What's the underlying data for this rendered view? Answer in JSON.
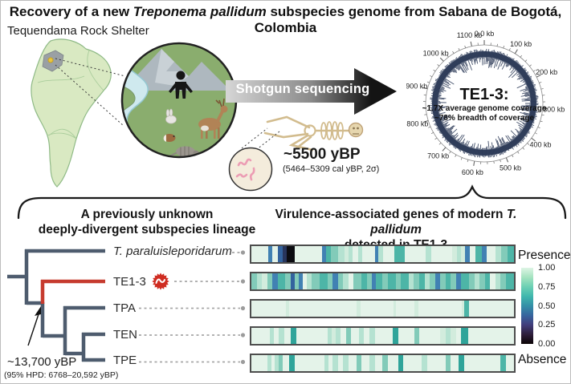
{
  "title": {
    "prefix": "Recovery of a new ",
    "species": "Treponema pallidum",
    "suffix": " subspecies genome from Sabana de Bogotá, Colombia"
  },
  "map": {
    "label": "Tequendama Rock Shelter",
    "land_color": "#d9e9c2",
    "region_color": "#9aa0a4",
    "marker_color": "#e9c63f"
  },
  "sequencing": {
    "arrow_label": "Shotgun sequencing",
    "arrow_colors": [
      "#d6d6d6",
      "#8a8a8a",
      "#141414"
    ],
    "age": "~5500 yBP",
    "age_detail": "(5464–5309 cal yBP, 2σ)"
  },
  "genome_plot": {
    "name": "TE1-3:",
    "coverage_line1": "~1.7X average genome coverage",
    "coverage_line2": "~78% breadth of coverage",
    "genome_size_kb": 1139,
    "tick_positions_kb": [
      0,
      100,
      200,
      300,
      400,
      500,
      600,
      700,
      800,
      900,
      1000,
      1100
    ],
    "tick_labels": [
      "0.0 kb",
      "100 kb",
      "200 kb",
      "300 kb",
      "400 kb",
      "500 kb",
      "600 kb",
      "700 kb",
      "800 kb",
      "900 kb",
      "1000 kb",
      "1100 kb"
    ],
    "coverage_color": "#2c3a57"
  },
  "tree_panel": {
    "heading_line1": "A previously unknown",
    "heading_line2": "deeply-divergent subspecies lineage",
    "taxa": [
      {
        "label": "T. paraluisleporidarum",
        "italic": true,
        "highlight": false
      },
      {
        "label": "TE1-3",
        "italic": false,
        "highlight": true
      },
      {
        "label": "TPA",
        "italic": false,
        "highlight": false
      },
      {
        "label": "TEN",
        "italic": false,
        "highlight": false
      },
      {
        "label": "TPE",
        "italic": false,
        "highlight": false
      }
    ],
    "node_age": "~13,700 yBP",
    "node_age_detail": "(95% HPD: 6768–20,592 yBP)",
    "branch_color": "#4e5c6e",
    "highlight_color": "#c63b2f",
    "badge_color": "#cf2c21"
  },
  "heatmap_panel": {
    "heading_prefix": "Virulence-associated genes of modern ",
    "heading_species": "T. pallidum",
    "heading_line2": "detected in TE1-3",
    "legend": {
      "top_label": "Presence",
      "bottom_label": "Absence",
      "ticks": [
        "1.00",
        "0.75",
        "0.50",
        "0.25",
        "0.00"
      ],
      "gradient": [
        "#def5e5",
        "#a5e3c0",
        "#6cd0b4",
        "#40b7ad",
        "#348fa7",
        "#37659e",
        "#413d7b",
        "#2e1e3b",
        "#0b0405"
      ]
    },
    "palette": {
      "P": "#e4f3e9",
      "F": "#d2ecdd",
      "L": "#b5e2d1",
      "M": "#82cbb9",
      "T": "#4db5a7",
      "TD": "#2fa49a",
      "B": "#4181b3",
      "DB": "#33639e",
      "N": "#28355c",
      "K": "#0b0b10"
    },
    "rows": [
      {
        "taxon": "T. paraluisleporidarum",
        "segments": [
          [
            6.5,
            "P"
          ],
          [
            1.6,
            "B"
          ],
          [
            1.9,
            "P"
          ],
          [
            2,
            "DB"
          ],
          [
            1.4,
            "N"
          ],
          [
            3,
            "K"
          ],
          [
            10.6,
            "P"
          ],
          [
            1.6,
            "B"
          ],
          [
            1.6,
            "T"
          ],
          [
            3,
            "M"
          ],
          [
            2.4,
            "L"
          ],
          [
            1.4,
            "F"
          ],
          [
            1.6,
            "L"
          ],
          [
            2,
            "P"
          ],
          [
            1.8,
            "L"
          ],
          [
            4.6,
            "P"
          ],
          [
            1.5,
            "B"
          ],
          [
            1.8,
            "L"
          ],
          [
            4.2,
            "P"
          ],
          [
            4,
            "T"
          ],
          [
            8,
            "P"
          ],
          [
            2,
            "L"
          ],
          [
            8,
            "P"
          ],
          [
            1.8,
            "F"
          ],
          [
            1.6,
            "L"
          ],
          [
            1.4,
            "F"
          ],
          [
            2,
            "B"
          ],
          [
            2,
            "P"
          ],
          [
            2.6,
            "T"
          ],
          [
            1.8,
            "B"
          ],
          [
            3.4,
            "P"
          ],
          [
            2,
            "L"
          ],
          [
            2.6,
            "M"
          ],
          [
            2.3,
            "T"
          ]
        ]
      },
      {
        "taxon": "TE1-3",
        "segments": [
          [
            2,
            "M"
          ],
          [
            2,
            "L"
          ],
          [
            2,
            "F"
          ],
          [
            2,
            "M"
          ],
          [
            2,
            "B"
          ],
          [
            3,
            "T"
          ],
          [
            2,
            "M"
          ],
          [
            1.5,
            "DB"
          ],
          [
            1.5,
            "M"
          ],
          [
            1.5,
            "B"
          ],
          [
            1.5,
            "P"
          ],
          [
            2,
            "L"
          ],
          [
            3,
            "M"
          ],
          [
            3,
            "T"
          ],
          [
            2,
            "M"
          ],
          [
            2,
            "B"
          ],
          [
            2,
            "M"
          ],
          [
            2,
            "L"
          ],
          [
            2,
            "P"
          ],
          [
            3,
            "M"
          ],
          [
            2,
            "T"
          ],
          [
            2,
            "M"
          ],
          [
            1.5,
            "B"
          ],
          [
            2.5,
            "T"
          ],
          [
            2,
            "M"
          ],
          [
            3,
            "T"
          ],
          [
            2,
            "M"
          ],
          [
            3,
            "T"
          ],
          [
            2,
            "L"
          ],
          [
            2,
            "M"
          ],
          [
            2,
            "T"
          ],
          [
            2,
            "L"
          ],
          [
            2,
            "M"
          ],
          [
            2,
            "B"
          ],
          [
            2,
            "M"
          ],
          [
            2,
            "T"
          ],
          [
            2,
            "M"
          ],
          [
            2,
            "B"
          ],
          [
            3,
            "T"
          ],
          [
            2,
            "M"
          ],
          [
            2,
            "L"
          ],
          [
            2,
            "M"
          ],
          [
            2,
            "T"
          ],
          [
            2,
            "P"
          ],
          [
            2,
            "L"
          ],
          [
            2,
            "M"
          ],
          [
            3,
            "T"
          ]
        ]
      },
      {
        "taxon": "TPA",
        "segments": [
          [
            13,
            "P"
          ],
          [
            1.5,
            "F"
          ],
          [
            25.5,
            "P"
          ],
          [
            1.5,
            "F"
          ],
          [
            12.5,
            "P"
          ],
          [
            1,
            "F"
          ],
          [
            7,
            "P"
          ],
          [
            1.5,
            "F"
          ],
          [
            16.5,
            "P"
          ],
          [
            1,
            "F"
          ],
          [
            2,
            "T"
          ],
          [
            17,
            "P"
          ]
        ]
      },
      {
        "taxon": "TEN",
        "segments": [
          [
            7,
            "P"
          ],
          [
            1.5,
            "L"
          ],
          [
            2,
            "P"
          ],
          [
            2,
            "L"
          ],
          [
            2.5,
            "P"
          ],
          [
            2,
            "TD"
          ],
          [
            12,
            "P"
          ],
          [
            1.5,
            "L"
          ],
          [
            1.5,
            "F"
          ],
          [
            2,
            "L"
          ],
          [
            2,
            "P"
          ],
          [
            2,
            "M"
          ],
          [
            3,
            "P"
          ],
          [
            2,
            "L"
          ],
          [
            2,
            "P"
          ],
          [
            2,
            "L"
          ],
          [
            7,
            "P"
          ],
          [
            2,
            "TD"
          ],
          [
            6,
            "P"
          ],
          [
            2,
            "M"
          ],
          [
            8,
            "P"
          ],
          [
            2,
            "F"
          ],
          [
            2,
            "L"
          ],
          [
            2,
            "F"
          ],
          [
            2,
            "P"
          ],
          [
            2.5,
            "TD"
          ],
          [
            17.5,
            "P"
          ]
        ]
      },
      {
        "taxon": "TPE",
        "segments": [
          [
            6,
            "P"
          ],
          [
            1.5,
            "L"
          ],
          [
            1.5,
            "P"
          ],
          [
            1.5,
            "L"
          ],
          [
            1.5,
            "M"
          ],
          [
            2.5,
            "P"
          ],
          [
            2,
            "TD"
          ],
          [
            11.5,
            "P"
          ],
          [
            1.5,
            "L"
          ],
          [
            1.5,
            "P"
          ],
          [
            2,
            "L"
          ],
          [
            2,
            "P"
          ],
          [
            2,
            "L"
          ],
          [
            3,
            "P"
          ],
          [
            2,
            "M"
          ],
          [
            3,
            "P"
          ],
          [
            2,
            "L"
          ],
          [
            3,
            "P"
          ],
          [
            2,
            "M"
          ],
          [
            4,
            "P"
          ],
          [
            2,
            "TD"
          ],
          [
            7,
            "P"
          ],
          [
            2,
            "L"
          ],
          [
            7,
            "P"
          ],
          [
            2,
            "M"
          ],
          [
            3,
            "P"
          ],
          [
            2,
            "TD"
          ],
          [
            14,
            "P"
          ],
          [
            2,
            "T"
          ],
          [
            3,
            "P"
          ]
        ]
      }
    ]
  }
}
